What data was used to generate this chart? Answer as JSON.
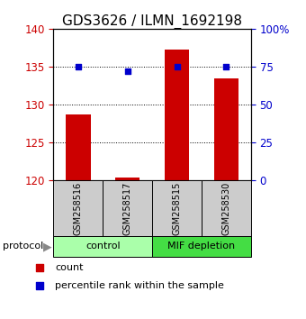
{
  "title": "GDS3626 / ILMN_1692198",
  "samples": [
    "GSM258516",
    "GSM258517",
    "GSM258515",
    "GSM258530"
  ],
  "counts": [
    128.7,
    120.3,
    137.3,
    133.5
  ],
  "percentiles": [
    75.0,
    72.0,
    75.0,
    75.0
  ],
  "ylim_left": [
    120,
    140
  ],
  "ylim_right": [
    0,
    100
  ],
  "yticks_left": [
    120,
    125,
    130,
    135,
    140
  ],
  "yticks_right": [
    0,
    25,
    50,
    75,
    100
  ],
  "bar_color": "#cc0000",
  "dot_color": "#0000cc",
  "group_labels": [
    "control",
    "MIF depletion"
  ],
  "group_colors": [
    "#aaffaa",
    "#44dd44"
  ],
  "protocol_label": "protocol",
  "legend_count": "count",
  "legend_pct": "percentile rank within the sample",
  "background_color": "#ffffff",
  "tick_label_color_left": "#cc0000",
  "tick_label_color_right": "#0000cc",
  "bar_width": 0.5,
  "sample_box_color": "#cccccc",
  "title_fontsize": 11,
  "axis_fontsize": 8.5,
  "legend_fontsize": 8
}
